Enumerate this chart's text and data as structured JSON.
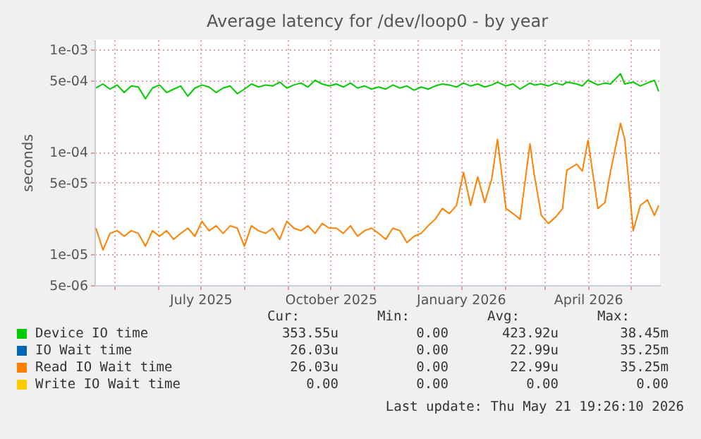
{
  "chart_data": {
    "type": "line",
    "title": "Average latency for /dev/loop0 - by year",
    "ylabel": "seconds",
    "log": "y",
    "grid": true,
    "legend": "bottom",
    "marker": "none",
    "line_style": "solid",
    "x": [
      "2025-04-18",
      "2025-04-23",
      "2025-04-28",
      "2025-05-03",
      "2025-05-08",
      "2025-05-13",
      "2025-05-18",
      "2025-05-23",
      "2025-05-28",
      "2025-06-02",
      "2025-06-07",
      "2025-06-12",
      "2025-06-17",
      "2025-06-22",
      "2025-06-27",
      "2025-07-02",
      "2025-07-07",
      "2025-07-12",
      "2025-07-17",
      "2025-07-22",
      "2025-07-27",
      "2025-08-01",
      "2025-08-06",
      "2025-08-11",
      "2025-08-16",
      "2025-08-21",
      "2025-08-26",
      "2025-08-31",
      "2025-09-05",
      "2025-09-10",
      "2025-09-15",
      "2025-09-20",
      "2025-09-25",
      "2025-09-30",
      "2025-10-05",
      "2025-10-10",
      "2025-10-15",
      "2025-10-20",
      "2025-10-25",
      "2025-10-30",
      "2025-11-04",
      "2025-11-09",
      "2025-11-14",
      "2025-11-19",
      "2025-11-24",
      "2025-11-29",
      "2025-12-04",
      "2025-12-09",
      "2025-12-14",
      "2025-12-19",
      "2025-12-24",
      "2025-12-29",
      "2026-01-03",
      "2026-01-08",
      "2026-01-13",
      "2026-01-18",
      "2026-01-23",
      "2026-01-27",
      "2026-02-02",
      "2026-02-07",
      "2026-02-12",
      "2026-02-19",
      "2026-02-22",
      "2026-02-27",
      "2026-03-04",
      "2026-03-09",
      "2026-03-14",
      "2026-03-17",
      "2026-03-24",
      "2026-03-28",
      "2026-04-01",
      "2026-04-08",
      "2026-04-13",
      "2026-04-17",
      "2026-04-24",
      "2026-04-27",
      "2026-05-03",
      "2026-05-08",
      "2026-05-13",
      "2026-05-18",
      "2026-05-21"
    ],
    "xlim": [
      "2025-04-17",
      "2026-05-22"
    ],
    "xticks": [
      {
        "value": "2025-05-01",
        "label": null
      },
      {
        "value": "2025-06-01",
        "label": null
      },
      {
        "value": "2025-07-01",
        "label": "July 2025"
      },
      {
        "value": "2025-08-01",
        "label": null
      },
      {
        "value": "2025-09-01",
        "label": null
      },
      {
        "value": "2025-10-01",
        "label": "October 2025"
      },
      {
        "value": "2025-11-01",
        "label": null
      },
      {
        "value": "2025-12-01",
        "label": null
      },
      {
        "value": "2026-01-01",
        "label": "January 2026"
      },
      {
        "value": "2026-02-01",
        "label": null
      },
      {
        "value": "2026-03-01",
        "label": null
      },
      {
        "value": "2026-04-01",
        "label": "April 2026"
      },
      {
        "value": "2026-05-01",
        "label": null
      }
    ],
    "ylim": [
      5e-06,
      0.00125
    ],
    "yticks": [
      {
        "value": 5e-06,
        "label": "5e-06"
      },
      {
        "value": 1e-05,
        "label": "1e-05"
      },
      {
        "value": 5e-05,
        "label": "5e-05"
      },
      {
        "value": 0.0001,
        "label": "1e-04"
      },
      {
        "value": 0.0005,
        "label": "5e-04"
      },
      {
        "value": 0.001,
        "label": "1e-03"
      }
    ],
    "series": [
      {
        "name": "Device IO time",
        "color": "#00cc00",
        "values": [
          0.00042,
          0.00046,
          0.00041,
          0.00045,
          0.00038,
          0.00044,
          0.00043,
          0.00033,
          0.00042,
          0.00045,
          0.00038,
          0.00041,
          0.00044,
          0.00035,
          0.00042,
          0.00045,
          0.00043,
          0.00038,
          0.00042,
          0.00044,
          0.00037,
          0.00041,
          0.00046,
          0.00043,
          0.00045,
          0.00044,
          0.00048,
          0.00042,
          0.00045,
          0.00047,
          0.00043,
          0.0005,
          0.00046,
          0.00044,
          0.00046,
          0.00043,
          0.00047,
          0.00042,
          0.00044,
          0.00041,
          0.00043,
          0.00041,
          0.00045,
          0.00042,
          0.00044,
          0.0004,
          0.00043,
          0.00041,
          0.00044,
          0.00046,
          0.00045,
          0.00043,
          0.00047,
          0.00044,
          0.00046,
          0.00043,
          0.00045,
          0.00048,
          0.00044,
          0.00046,
          0.00041,
          0.00047,
          0.00045,
          0.00046,
          0.00044,
          0.00047,
          0.00045,
          0.00048,
          0.00046,
          0.00044,
          0.0005,
          0.00045,
          0.00047,
          0.00046,
          0.00058,
          0.00046,
          0.00048,
          0.00044,
          0.00047,
          0.0005,
          0.00039
        ]
      },
      {
        "name": "IO Wait time",
        "color": "#0066b3",
        "values": [
          null,
          null,
          null,
          null,
          null,
          null,
          null,
          null,
          null,
          null,
          null,
          null,
          null,
          null,
          null,
          null,
          null,
          null,
          null,
          null,
          null,
          null,
          null,
          null,
          null,
          null,
          null,
          null,
          null,
          null,
          null,
          null,
          null,
          null,
          null,
          null,
          null,
          null,
          null,
          null,
          null,
          null,
          null,
          null,
          null,
          null,
          null,
          null,
          null,
          null,
          null,
          null,
          null,
          null,
          null,
          null,
          null,
          null,
          null,
          null,
          null,
          null,
          null,
          null,
          null,
          null,
          null,
          null,
          null,
          null,
          null,
          null,
          null,
          null,
          null,
          null,
          null,
          null,
          null,
          null,
          null
        ]
      },
      {
        "name": "Read IO Wait time",
        "color": "#ff8000",
        "values": [
          1.8e-05,
          1.1e-05,
          1.6e-05,
          1.7e-05,
          1.5e-05,
          1.7e-05,
          1.6e-05,
          1.2e-05,
          1.7e-05,
          1.5e-05,
          1.7e-05,
          1.4e-05,
          1.6e-05,
          1.8e-05,
          1.5e-05,
          2.1e-05,
          1.7e-05,
          1.9e-05,
          1.6e-05,
          1.9e-05,
          1.8e-05,
          1.2e-05,
          1.9e-05,
          1.7e-05,
          1.6e-05,
          1.8e-05,
          1.4e-05,
          2.1e-05,
          1.8e-05,
          1.7e-05,
          1.9e-05,
          1.6e-05,
          2e-05,
          1.8e-05,
          1.8e-05,
          1.6e-05,
          1.9e-05,
          1.5e-05,
          1.7e-05,
          1.8e-05,
          1.6e-05,
          1.4e-05,
          1.8e-05,
          1.7e-05,
          1.3e-05,
          1.5e-05,
          1.6e-05,
          1.9e-05,
          2.2e-05,
          2.8e-05,
          2.5e-05,
          3e-05,
          6.3e-05,
          3e-05,
          5.7e-05,
          3.2e-05,
          5.5e-05,
          0.000133,
          2.8e-05,
          2.5e-05,
          2.2e-05,
          0.00012,
          6e-05,
          2.4e-05,
          2e-05,
          2.3e-05,
          2.8e-05,
          6.6e-05,
          7.6e-05,
          6.5e-05,
          0.00013,
          2.8e-05,
          3.2e-05,
          6.5e-05,
          0.00019,
          0.000133,
          1.7e-05,
          3e-05,
          3.4e-05,
          2.4e-05,
          3e-05
        ]
      },
      {
        "name": "Write IO Wait time",
        "color": "#ffcc00",
        "values": [
          null,
          null,
          null,
          null,
          null,
          null,
          null,
          null,
          null,
          null,
          null,
          null,
          null,
          null,
          null,
          null,
          null,
          null,
          null,
          null,
          null,
          null,
          null,
          null,
          null,
          null,
          null,
          null,
          null,
          null,
          null,
          null,
          null,
          null,
          null,
          null,
          null,
          null,
          null,
          null,
          null,
          null,
          null,
          null,
          null,
          null,
          null,
          null,
          null,
          null,
          null,
          null,
          null,
          null,
          null,
          null,
          null,
          null,
          null,
          null,
          null,
          null,
          null,
          null,
          null,
          null,
          null,
          null,
          null,
          null,
          null,
          null,
          null,
          null,
          null,
          null,
          null,
          null,
          null,
          null,
          null
        ]
      }
    ],
    "annotations": [
      "Cur:",
      "Min:",
      "Avg:",
      "Max:",
      "353.55u",
      "0.00",
      "423.92u",
      "38.45m",
      "26.03u",
      "0.00",
      "22.99u",
      "35.25m",
      "26.03u",
      "0.00",
      "22.99u",
      "35.25m",
      "0.00",
      "0.00",
      "0.00",
      "0.00",
      "Last update: Thu May 21 19:26:10 2026"
    ]
  }
}
